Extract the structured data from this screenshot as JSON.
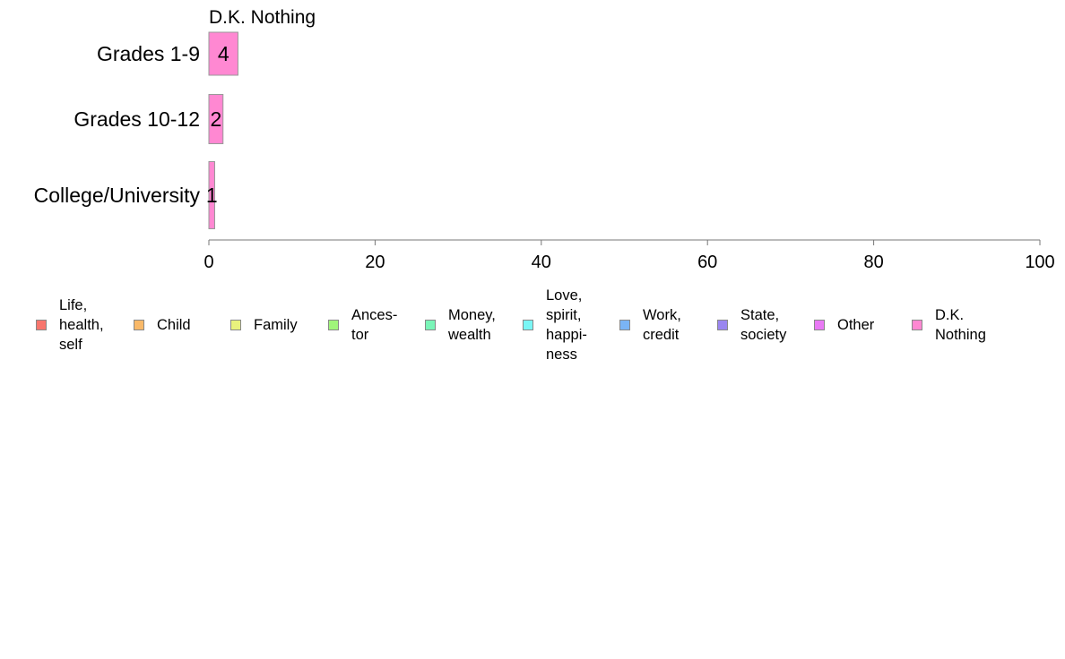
{
  "chart_data": {
    "type": "bar",
    "orientation": "horizontal",
    "stacked": true,
    "title": "D.K. Nothing",
    "xlabel": "",
    "ylabel": "",
    "xlim": [
      0,
      100
    ],
    "x_ticks": [
      "0",
      "20",
      "40",
      "60",
      "80",
      "100"
    ],
    "grid": false,
    "legend_position": "bottom",
    "categories": [
      "Grades 1-9",
      "Grades 10-12",
      "College/University"
    ],
    "series": [
      {
        "name": "Life,\nhealth,\nself",
        "color": "#F8766D",
        "values": [
          0,
          0,
          0
        ]
      },
      {
        "name": "Child",
        "color": "#F9B969",
        "values": [
          0,
          0,
          0
        ]
      },
      {
        "name": "Family",
        "color": "#E9F27D",
        "values": [
          0,
          0,
          0
        ]
      },
      {
        "name": "Ances-\ntor",
        "color": "#A0F57A",
        "values": [
          0,
          0,
          0
        ]
      },
      {
        "name": "Money,\nwealth",
        "color": "#7AF5B8",
        "values": [
          0,
          0,
          0
        ]
      },
      {
        "name": "Love,\nspirit,\nhappi-\nness",
        "color": "#7AF6F5",
        "values": [
          0,
          0,
          0
        ]
      },
      {
        "name": "Work,\ncredit",
        "color": "#7AB4F5",
        "values": [
          0,
          0,
          0
        ]
      },
      {
        "name": "State,\nsociety",
        "color": "#9A86F0",
        "values": [
          0,
          0,
          0
        ]
      },
      {
        "name": "Other",
        "color": "#E979F5",
        "values": [
          0,
          0,
          0
        ]
      },
      {
        "name": "D.K.\nNothing",
        "color": "#FF88D2",
        "values": [
          3.5,
          1.7,
          0.7
        ]
      }
    ],
    "data_labels": [
      "4",
      "2",
      "1"
    ]
  }
}
